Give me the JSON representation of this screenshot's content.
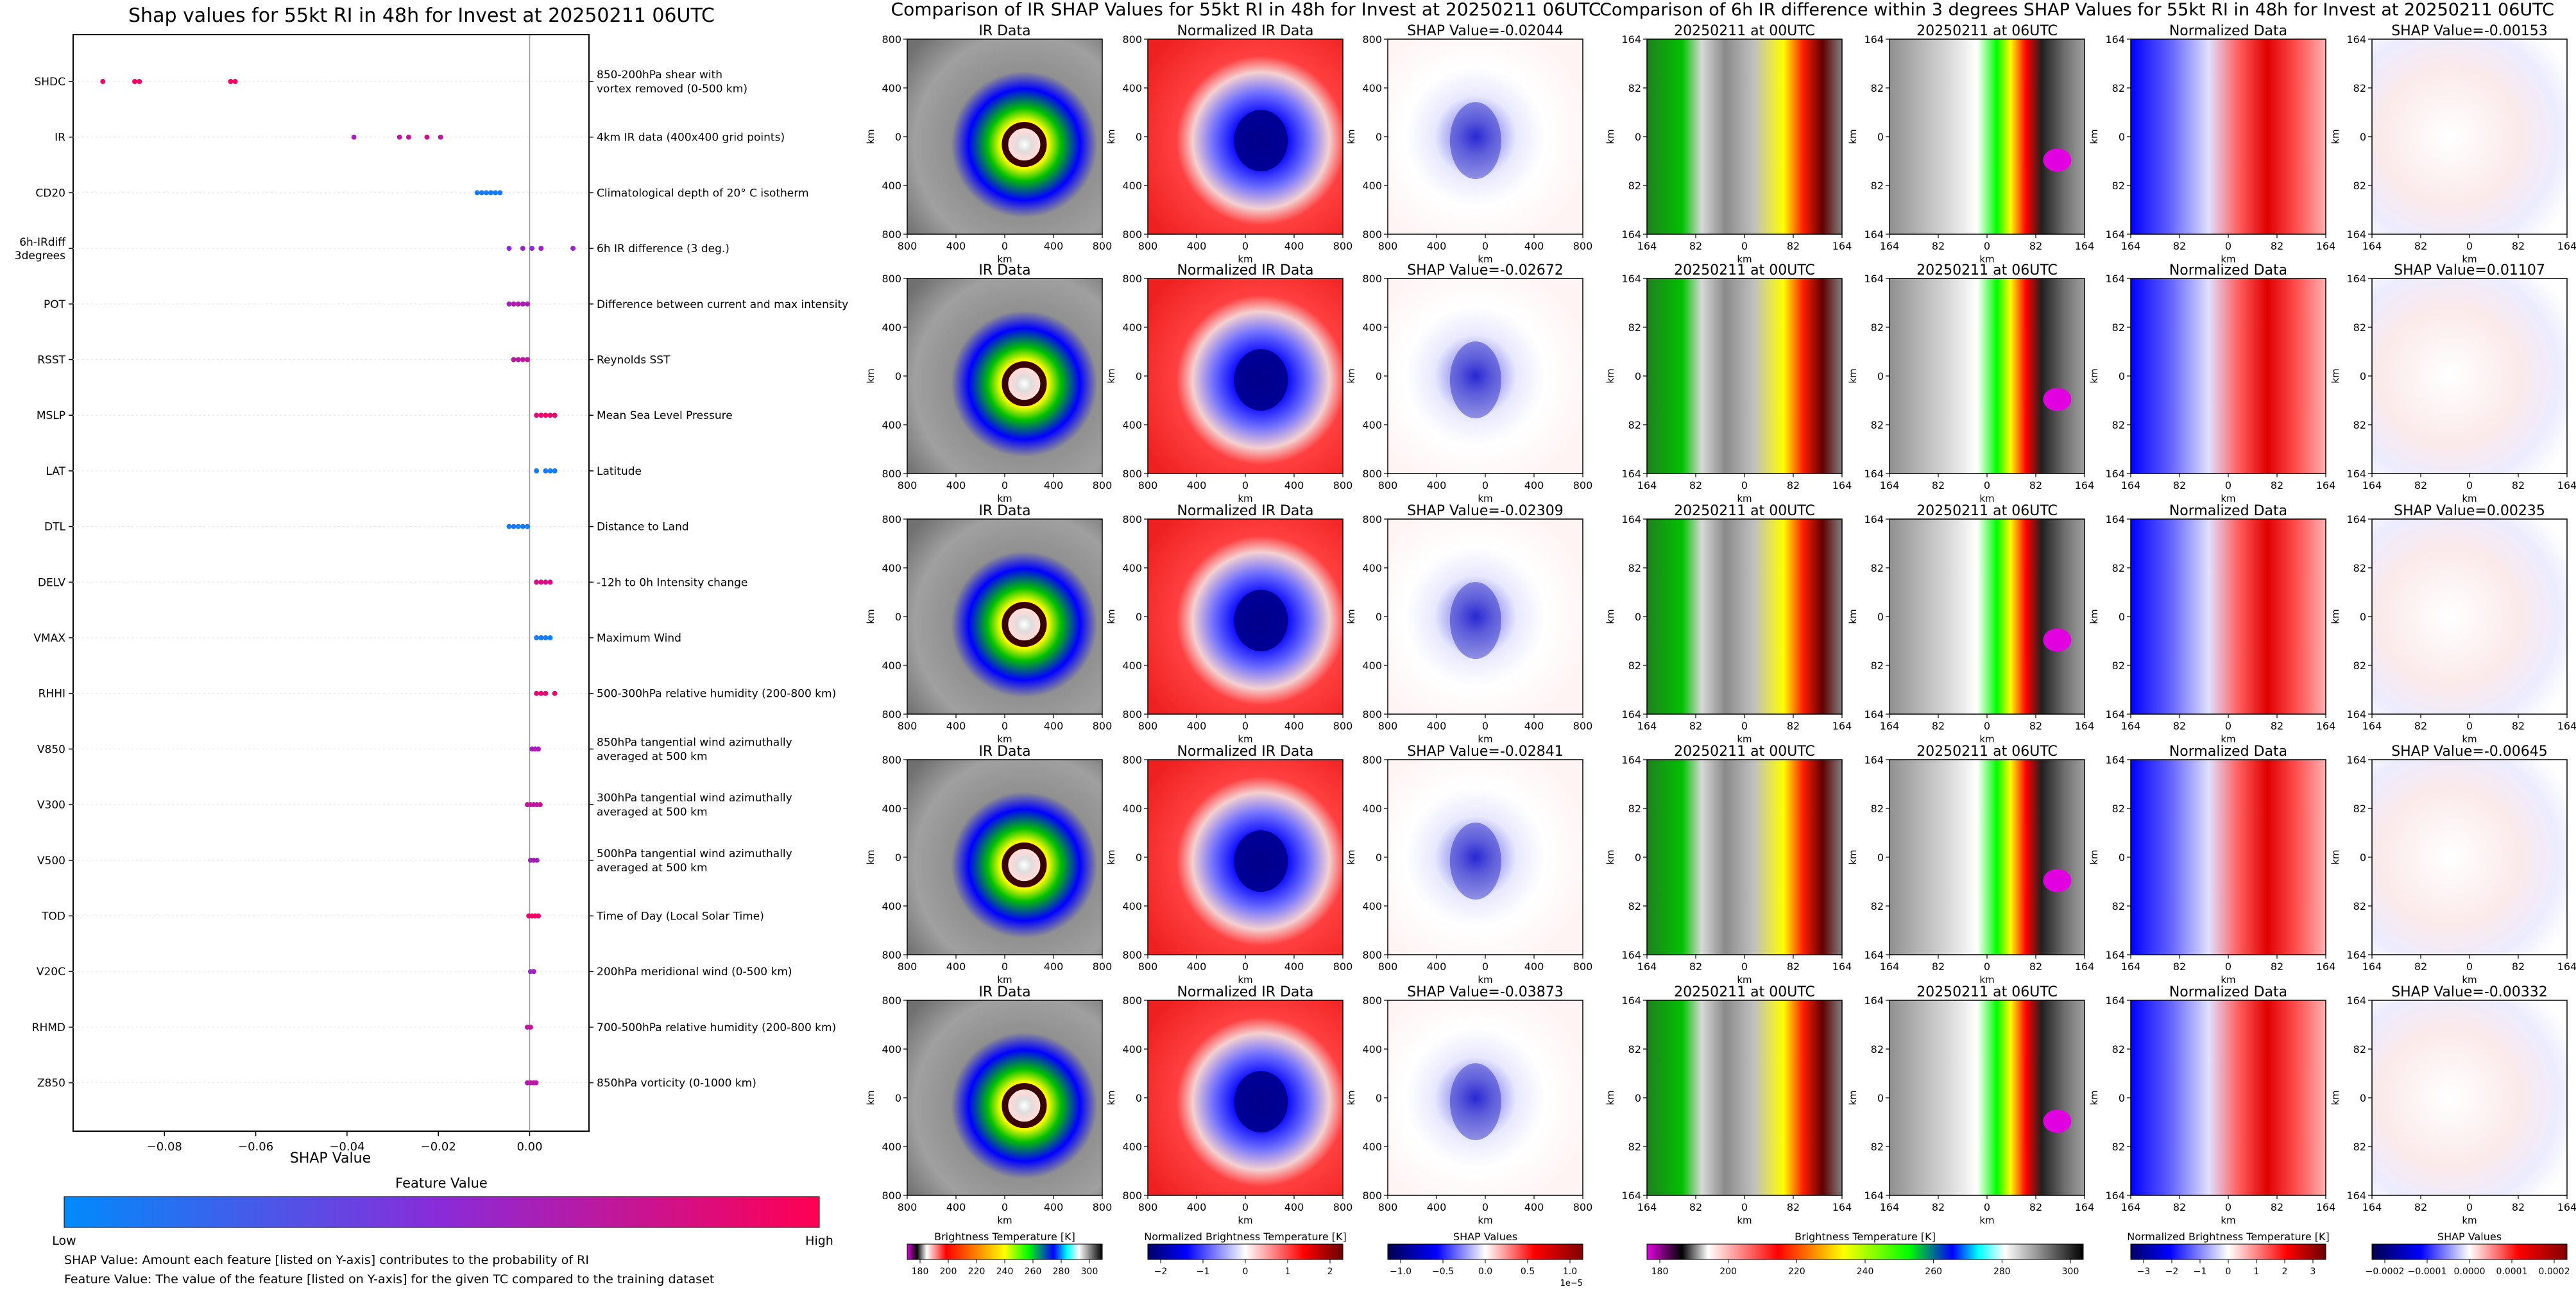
{
  "chart_data": [
    {
      "type": "scatter",
      "title": "Shap values for 55kt RI in 48h for Invest at 20250211 06UTC",
      "xlabel": "SHAP Value",
      "xlim": [
        -0.1,
        0.013
      ],
      "x_ticks": [
        "−0.08",
        "−0.06",
        "−0.04",
        "−0.02",
        "0.00"
      ],
      "x_tick_values": [
        -0.08,
        -0.06,
        -0.04,
        -0.02,
        0.0
      ],
      "features": [
        {
          "name": "SHDC",
          "desc": [
            "850-200hPa shear with",
            "vortex removed (0-500 km)"
          ],
          "points": [
            [
              -0.0935,
              0.9
            ],
            [
              -0.0865,
              0.95
            ],
            [
              -0.0855,
              0.9
            ],
            [
              -0.0655,
              0.95
            ],
            [
              -0.0645,
              0.92
            ]
          ]
        },
        {
          "name": "IR",
          "desc": [
            "4km IR data (400x400 grid points)"
          ],
          "points": [
            [
              -0.0385,
              0.6
            ],
            [
              -0.0285,
              0.7
            ],
            [
              -0.0265,
              0.75
            ],
            [
              -0.0225,
              0.8
            ],
            [
              -0.0195,
              0.7
            ]
          ]
        },
        {
          "name": "CD20",
          "desc": [
            "Climatological depth of 20° C isotherm"
          ],
          "points": [
            [
              -0.0115,
              0.08
            ],
            [
              -0.0105,
              0.1
            ],
            [
              -0.0095,
              0.07
            ],
            [
              -0.0085,
              0.09
            ],
            [
              -0.0075,
              0.05
            ],
            [
              -0.0065,
              0.1
            ]
          ]
        },
        {
          "name": "6h-IRdiff",
          "name2": "3degrees",
          "desc": [
            "6h IR difference (3 deg.)"
          ],
          "points": [
            [
              -0.0045,
              0.5
            ],
            [
              -0.0015,
              0.55
            ],
            [
              0.0005,
              0.5
            ],
            [
              0.0025,
              0.6
            ],
            [
              0.0095,
              0.55
            ]
          ]
        },
        {
          "name": "POT",
          "desc": [
            "Difference between current and max intensity"
          ],
          "points": [
            [
              -0.0045,
              0.6
            ],
            [
              -0.0035,
              0.65
            ],
            [
              -0.0025,
              0.7
            ],
            [
              -0.0015,
              0.6
            ],
            [
              -0.0005,
              0.65
            ]
          ]
        },
        {
          "name": "RSST",
          "desc": [
            "Reynolds SST"
          ],
          "points": [
            [
              -0.0035,
              0.7
            ],
            [
              -0.0025,
              0.72
            ],
            [
              -0.0015,
              0.7
            ],
            [
              -0.0005,
              0.75
            ]
          ]
        },
        {
          "name": "MSLP",
          "desc": [
            "Mean Sea Level Pressure"
          ],
          "points": [
            [
              0.0015,
              0.85
            ],
            [
              0.0025,
              0.9
            ],
            [
              0.0035,
              0.95
            ],
            [
              0.0045,
              0.9
            ],
            [
              0.0055,
              0.92
            ]
          ]
        },
        {
          "name": "LAT",
          "desc": [
            "Latitude"
          ],
          "points": [
            [
              0.0015,
              0.08
            ],
            [
              0.0035,
              0.1
            ],
            [
              0.0045,
              0.05
            ],
            [
              0.0055,
              0.1
            ]
          ]
        },
        {
          "name": "DTL",
          "desc": [
            "Distance to Land"
          ],
          "points": [
            [
              -0.0045,
              0.08
            ],
            [
              -0.0035,
              0.1
            ],
            [
              -0.0025,
              0.05
            ],
            [
              -0.0015,
              0.1
            ],
            [
              -0.0005,
              0.09
            ]
          ]
        },
        {
          "name": "DELV",
          "desc": [
            "-12h to 0h Intensity change"
          ],
          "points": [
            [
              0.0015,
              0.8
            ],
            [
              0.0025,
              0.85
            ],
            [
              0.0035,
              0.8
            ],
            [
              0.0045,
              0.82
            ]
          ]
        },
        {
          "name": "VMAX",
          "desc": [
            "Maximum Wind"
          ],
          "points": [
            [
              0.0015,
              0.08
            ],
            [
              0.0025,
              0.1
            ],
            [
              0.0035,
              0.08
            ],
            [
              0.0045,
              0.05
            ]
          ]
        },
        {
          "name": "RHHI",
          "desc": [
            "500-300hPa relative humidity (200-800 km)"
          ],
          "points": [
            [
              0.0015,
              0.85
            ],
            [
              0.0025,
              0.9
            ],
            [
              0.0035,
              0.88
            ],
            [
              0.0055,
              0.9
            ]
          ]
        },
        {
          "name": "V850",
          "desc": [
            "850hPa tangential wind azimuthally",
            "averaged at 500 km"
          ],
          "points": [
            [
              0.0005,
              0.6
            ],
            [
              0.0012,
              0.65
            ],
            [
              0.0019,
              0.62
            ]
          ]
        },
        {
          "name": "V300",
          "desc": [
            "300hPa tangential wind azimuthally",
            "averaged at 500 km"
          ],
          "points": [
            [
              -0.0005,
              0.7
            ],
            [
              0.0002,
              0.75
            ],
            [
              0.0009,
              0.72
            ],
            [
              0.0016,
              0.7
            ],
            [
              0.0023,
              0.75
            ]
          ]
        },
        {
          "name": "V500",
          "desc": [
            "500hPa tangential wind azimuthally",
            "averaged at 500 km"
          ],
          "points": [
            [
              0.0002,
              0.6
            ],
            [
              0.0009,
              0.65
            ],
            [
              0.0016,
              0.6
            ]
          ]
        },
        {
          "name": "TOD",
          "desc": [
            "Time of Day (Local Solar Time)"
          ],
          "points": [
            [
              -0.0002,
              0.9
            ],
            [
              0.0005,
              0.92
            ],
            [
              0.0012,
              0.95
            ],
            [
              0.0019,
              0.9
            ]
          ]
        },
        {
          "name": "V20C",
          "desc": [
            "200hPa meridional wind (0-500 km)"
          ],
          "points": [
            [
              0.0002,
              0.55
            ],
            [
              0.0009,
              0.6
            ]
          ]
        },
        {
          "name": "RHMD",
          "desc": [
            "700-500hPa relative humidity (200-800 km)"
          ],
          "points": [
            [
              -0.0005,
              0.7
            ],
            [
              0.0002,
              0.75
            ]
          ]
        },
        {
          "name": "Z850",
          "desc": [
            "850hPa vorticity (0-1000 km)"
          ],
          "points": [
            [
              -0.0005,
              0.65
            ],
            [
              0.0002,
              0.7
            ],
            [
              0.0009,
              0.72
            ],
            [
              0.0014,
              0.7
            ]
          ]
        }
      ],
      "colorbar": {
        "title": "Feature Value",
        "low": "Low",
        "high": "High",
        "colors": [
          "#008bfb",
          "#8a2bd8",
          "#ff0052"
        ]
      },
      "notes": [
        "SHAP Value: Amount each feature [listed on Y-axis] contributes to the probability of RI",
        "Feature Value: The value of the feature [listed on Y-axis] for the given TC compared to the training dataset"
      ]
    },
    {
      "type": "heatmap",
      "title": "Comparison of IR SHAP Values for 55kt RI in 48h for Invest at 20250211 06UTC",
      "columns": [
        "IR Data",
        "Normalized IR Data"
      ],
      "shap_titles": [
        "SHAP Value=-0.02044",
        "SHAP Value=-0.02672",
        "SHAP Value=-0.02309",
        "SHAP Value=-0.02841",
        "SHAP Value=-0.03873"
      ],
      "axis_label": "km",
      "x_ticks": [
        "800",
        "400",
        "0",
        "400",
        "800"
      ],
      "y_ticks": [
        "800",
        "400",
        "0",
        "400",
        "800"
      ],
      "colorbars": [
        {
          "label": "Brightness Temperature [K]",
          "ticks": [
            "180",
            "200",
            "220",
            "240",
            "260",
            "280",
            "300"
          ]
        },
        {
          "label": "Normalized Brightness Temperature [K]",
          "ticks": [
            "−2",
            "−1",
            "0",
            "1",
            "2"
          ]
        },
        {
          "label": "SHAP Values",
          "ticks": [
            "−1.0",
            "−0.5",
            "0.0",
            "0.5",
            "1.0"
          ],
          "offset": "1e−5"
        }
      ]
    },
    {
      "type": "heatmap",
      "title": "Comparison of 6h IR difference within 3 degrees SHAP Values for 55kt RI in 48h for Invest at 20250211 06UTC",
      "columns": [
        "20250211 at 00UTC",
        "20250211 at 06UTC",
        "Normalized Data"
      ],
      "shap_titles": [
        "SHAP Value=-0.00153",
        "SHAP Value=0.01107",
        "SHAP Value=0.00235",
        "SHAP Value=-0.00645",
        "SHAP Value=-0.00332"
      ],
      "axis_label": "km",
      "x_ticks": [
        "164",
        "82",
        "0",
        "82",
        "164"
      ],
      "y_ticks": [
        "164",
        "82",
        "0",
        "82",
        "164"
      ],
      "colorbars": [
        {
          "label": "Brightness Temperature [K]",
          "ticks": [
            "180",
            "200",
            "220",
            "240",
            "260",
            "280",
            "300"
          ]
        },
        {
          "label": "Normalized Brightness Temperature [K]",
          "ticks": [
            "−3",
            "−2",
            "−1",
            "0",
            "1",
            "2",
            "3"
          ]
        },
        {
          "label": "SHAP Values",
          "ticks": [
            "−0.0002",
            "−0.0001",
            "0.0000",
            "0.0001",
            "0.0002"
          ]
        }
      ]
    }
  ]
}
